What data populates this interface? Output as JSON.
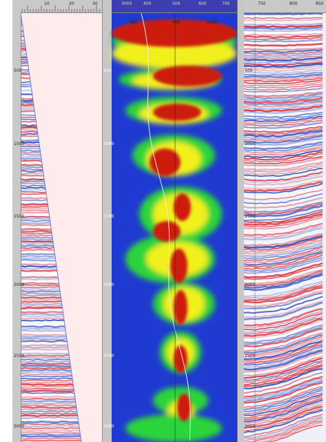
{
  "panels": {
    "left": {
      "top_ruler_labels": [
        "10",
        "20",
        "30"
      ],
      "depth_labels": [
        "500",
        "1000",
        "1500",
        "2000",
        "2500",
        "3000"
      ]
    },
    "middle": {
      "top_ruler_labels": [
        "3000",
        "400",
        "500",
        "600",
        "700"
      ],
      "sub_labels": [
        "300",
        "400",
        "1000"
      ],
      "depth_labels": [
        "500",
        "1000",
        "1500",
        "2000",
        "2500",
        "3000"
      ]
    },
    "right": {
      "top_ruler_labels": [
        "750",
        "800",
        "850"
      ],
      "depth_labels": [
        "500",
        "1000",
        "1500",
        "2000",
        "2500",
        "3000"
      ]
    }
  },
  "colors": {
    "ruler": "#c9c9c9",
    "seismic_red": "#d81f2a",
    "seismic_blue": "#1f3fb8",
    "velocity_blue": "#1f3ad0",
    "velocity_green": "#2ad43a",
    "velocity_yellow": "#f2f01e",
    "velocity_red": "#cc1a0e",
    "mask_pink": "#fdeceb"
  }
}
